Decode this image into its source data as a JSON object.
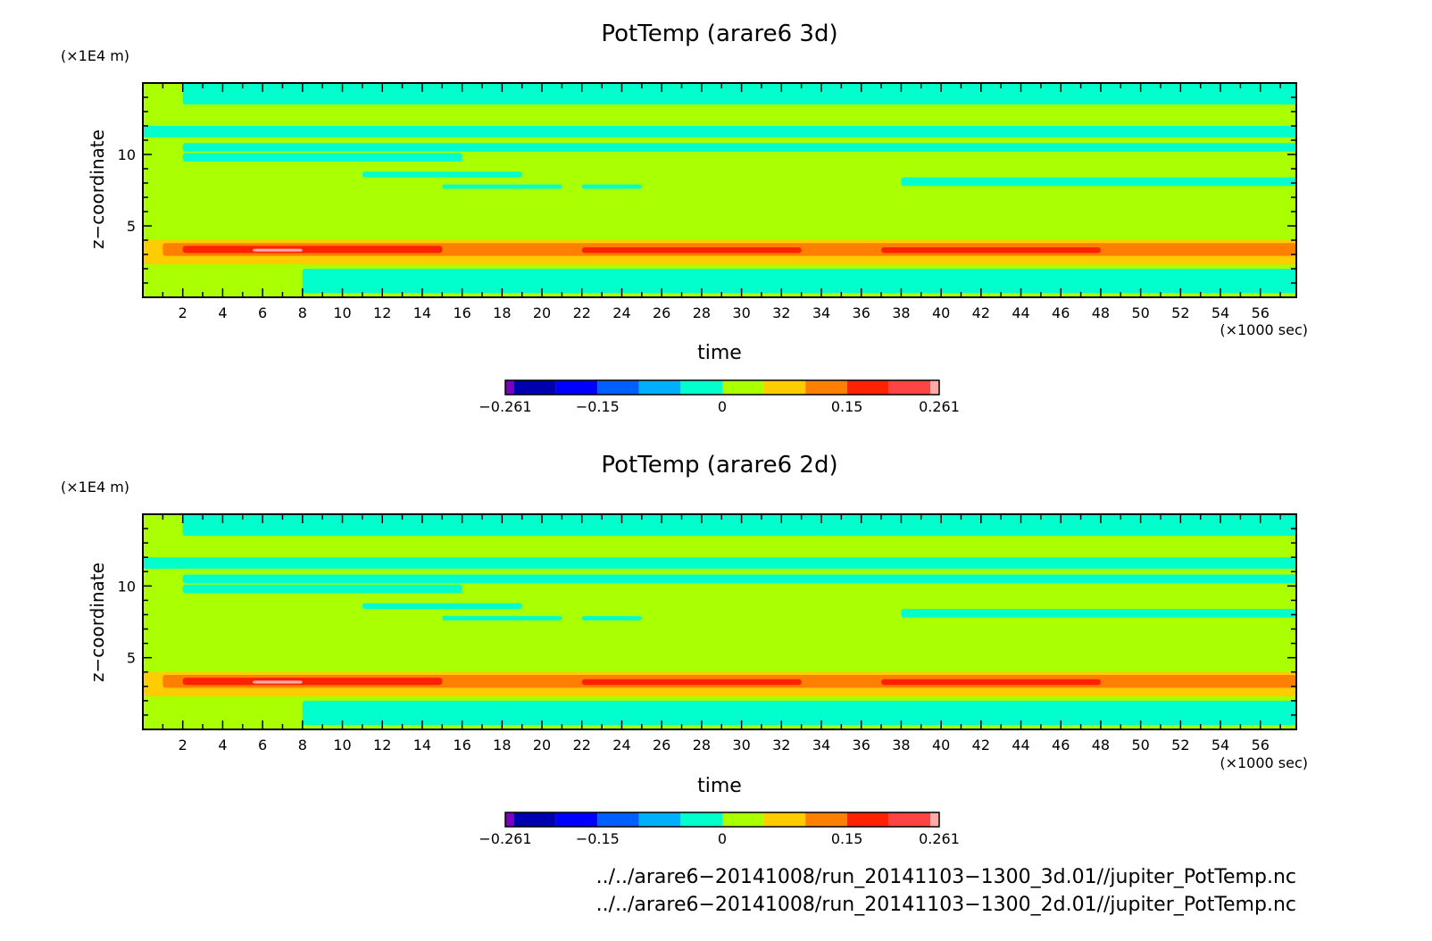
{
  "colorbar": {
    "colors": [
      "#7a00c0",
      "#0000b0",
      "#0000ff",
      "#0060ff",
      "#00b0ff",
      "#00ffcc",
      "#aaff00",
      "#ffcc00",
      "#ff8000",
      "#ff2200",
      "#ff4444",
      "#ffaaaa"
    ],
    "labels": [
      {
        "text": "−0.261",
        "value": -0.261
      },
      {
        "text": "−0.15",
        "value": -0.15
      },
      {
        "text": "0",
        "value": 0
      },
      {
        "text": "0.15",
        "value": 0.15
      },
      {
        "text": "0.261",
        "value": 0.261
      }
    ]
  },
  "chart_data": [
    {
      "type": "heatmap",
      "title": "PotTemp (arare6 3d)",
      "xlabel": "time",
      "ylabel": "z−coordinate",
      "x_unit": "(×1000 sec)",
      "y_unit": "(×1E4 m)",
      "xlim": [
        0,
        57.8
      ],
      "ylim": [
        0,
        15
      ],
      "xticks": [
        2,
        4,
        6,
        8,
        10,
        12,
        14,
        16,
        18,
        20,
        22,
        24,
        26,
        28,
        30,
        32,
        34,
        36,
        38,
        40,
        42,
        44,
        46,
        48,
        50,
        52,
        54,
        56
      ],
      "yticks": [
        5,
        10
      ],
      "background_level": "#aaff00",
      "bands": [
        {
          "color": "#00ffcc",
          "x0": 2,
          "x1": 57.8,
          "y0": 13.5,
          "y1": 15
        },
        {
          "color": "#00ffcc",
          "x0": 0,
          "x1": 57.8,
          "y0": 11.2,
          "y1": 12.0
        },
        {
          "color": "#00ffcc",
          "x0": 2,
          "x1": 57.8,
          "y0": 10.2,
          "y1": 10.8
        },
        {
          "color": "#00ffcc",
          "x0": 2,
          "x1": 16,
          "y0": 9.5,
          "y1": 10.1
        },
        {
          "color": "#00ffcc",
          "x0": 11,
          "x1": 19,
          "y0": 8.4,
          "y1": 8.8
        },
        {
          "color": "#00ffcc",
          "x0": 15,
          "x1": 21,
          "y0": 7.6,
          "y1": 7.9
        },
        {
          "color": "#00ffcc",
          "x0": 22,
          "x1": 25,
          "y0": 7.6,
          "y1": 7.9
        },
        {
          "color": "#00ffcc",
          "x0": 38,
          "x1": 57.8,
          "y0": 7.8,
          "y1": 8.4
        },
        {
          "color": "#00ffcc",
          "x0": 8,
          "x1": 57.8,
          "y0": 0.3,
          "y1": 2.0
        },
        {
          "color": "#ffcc00",
          "x0": 0,
          "x1": 57.8,
          "y0": 2.3,
          "y1": 4.0
        },
        {
          "color": "#ff8000",
          "x0": 1,
          "x1": 57.8,
          "y0": 2.9,
          "y1": 3.8
        },
        {
          "color": "#ff2200",
          "x0": 2,
          "x1": 15,
          "y0": 3.1,
          "y1": 3.6
        },
        {
          "color": "#ff2200",
          "x0": 22,
          "x1": 33,
          "y0": 3.1,
          "y1": 3.5
        },
        {
          "color": "#ff2200",
          "x0": 37,
          "x1": 48,
          "y0": 3.1,
          "y1": 3.5
        },
        {
          "color": "#ffaaaa",
          "x0": 5.5,
          "x1": 8,
          "y0": 3.2,
          "y1": 3.4
        }
      ]
    },
    {
      "type": "heatmap",
      "title": "PotTemp (arare6 2d)",
      "xlabel": "time",
      "ylabel": "z−coordinate",
      "x_unit": "(×1000 sec)",
      "y_unit": "(×1E4 m)",
      "xlim": [
        0,
        57.8
      ],
      "ylim": [
        0,
        15
      ],
      "xticks": [
        2,
        4,
        6,
        8,
        10,
        12,
        14,
        16,
        18,
        20,
        22,
        24,
        26,
        28,
        30,
        32,
        34,
        36,
        38,
        40,
        42,
        44,
        46,
        48,
        50,
        52,
        54,
        56
      ],
      "yticks": [
        5,
        10
      ],
      "background_level": "#aaff00",
      "bands": [
        {
          "color": "#00ffcc",
          "x0": 2,
          "x1": 57.8,
          "y0": 13.5,
          "y1": 15
        },
        {
          "color": "#00ffcc",
          "x0": 0,
          "x1": 57.8,
          "y0": 11.2,
          "y1": 12.0
        },
        {
          "color": "#00ffcc",
          "x0": 2,
          "x1": 57.8,
          "y0": 10.2,
          "y1": 10.8
        },
        {
          "color": "#00ffcc",
          "x0": 2,
          "x1": 16,
          "y0": 9.5,
          "y1": 10.1
        },
        {
          "color": "#00ffcc",
          "x0": 11,
          "x1": 19,
          "y0": 8.4,
          "y1": 8.8
        },
        {
          "color": "#00ffcc",
          "x0": 15,
          "x1": 21,
          "y0": 7.6,
          "y1": 7.9
        },
        {
          "color": "#00ffcc",
          "x0": 22,
          "x1": 25,
          "y0": 7.6,
          "y1": 7.9
        },
        {
          "color": "#00ffcc",
          "x0": 38,
          "x1": 57.8,
          "y0": 7.8,
          "y1": 8.4
        },
        {
          "color": "#00ffcc",
          "x0": 8,
          "x1": 57.8,
          "y0": 0.3,
          "y1": 2.0
        },
        {
          "color": "#ffcc00",
          "x0": 0,
          "x1": 57.8,
          "y0": 2.3,
          "y1": 4.0
        },
        {
          "color": "#ff8000",
          "x0": 1,
          "x1": 57.8,
          "y0": 2.9,
          "y1": 3.8
        },
        {
          "color": "#ff2200",
          "x0": 2,
          "x1": 15,
          "y0": 3.1,
          "y1": 3.6
        },
        {
          "color": "#ff2200",
          "x0": 22,
          "x1": 33,
          "y0": 3.1,
          "y1": 3.5
        },
        {
          "color": "#ff2200",
          "x0": 37,
          "x1": 48,
          "y0": 3.1,
          "y1": 3.5
        },
        {
          "color": "#ffaaaa",
          "x0": 5.5,
          "x1": 8,
          "y0": 3.2,
          "y1": 3.4
        }
      ]
    }
  ],
  "footer": {
    "file1": "../../arare6−20141008/run_20141103−1300_3d.01//jupiter_PotTemp.nc",
    "file2": "../../arare6−20141008/run_20141103−1300_2d.01//jupiter_PotTemp.nc"
  }
}
